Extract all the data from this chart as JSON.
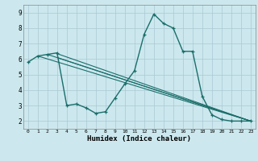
{
  "xlabel": "Humidex (Indice chaleur)",
  "bg_color": "#cce8ee",
  "grid_color": "#aac8d4",
  "line_color": "#1a6e6a",
  "xlim": [
    -0.5,
    23.5
  ],
  "ylim": [
    1.5,
    9.5
  ],
  "xticks": [
    0,
    1,
    2,
    3,
    4,
    5,
    6,
    7,
    8,
    9,
    10,
    11,
    12,
    13,
    14,
    15,
    16,
    17,
    18,
    19,
    20,
    21,
    22,
    23
  ],
  "yticks": [
    2,
    3,
    4,
    5,
    6,
    7,
    8,
    9
  ],
  "curve1_x": [
    0,
    1,
    2,
    3,
    4,
    5,
    6,
    7,
    8,
    9,
    10,
    11,
    12,
    13,
    14,
    15,
    16,
    17,
    18,
    19,
    20,
    21,
    22,
    23
  ],
  "curve1_y": [
    5.8,
    6.2,
    6.3,
    6.4,
    3.0,
    3.1,
    2.85,
    2.5,
    2.6,
    3.5,
    4.4,
    5.25,
    7.6,
    8.9,
    8.3,
    8.0,
    6.5,
    6.5,
    3.6,
    2.4,
    2.1,
    2.0,
    2.0,
    2.0
  ],
  "line1_x": [
    1,
    23
  ],
  "line1_y": [
    6.2,
    2.0
  ],
  "line2_x": [
    2,
    23
  ],
  "line2_y": [
    6.3,
    2.0
  ],
  "line3_x": [
    3,
    23
  ],
  "line3_y": [
    6.35,
    2.0
  ],
  "line4_x": [
    3,
    23
  ],
  "line4_y": [
    6.1,
    2.0
  ]
}
